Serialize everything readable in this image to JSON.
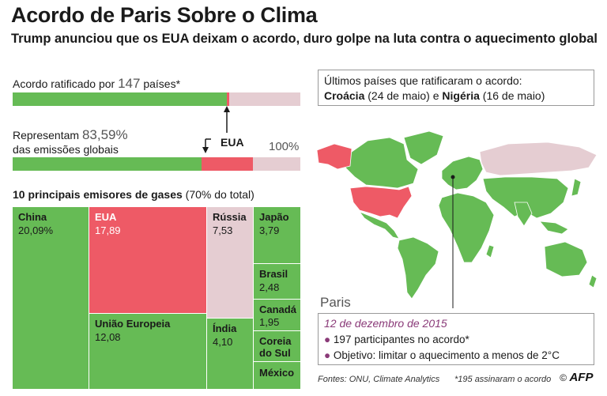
{
  "header": {
    "title": "Acordo de Paris Sobre o Clima",
    "subtitle": "Trump anunciou que os EUA deixam o acordo, duro golpe na luta contra o aquecimento global"
  },
  "ratified": {
    "label_prefix": "Acordo ratificado por",
    "count": "147",
    "label_suffix": "países*",
    "fraction": 0.7538
  },
  "emissions": {
    "label_prefix": "Representam",
    "value": "83,59%",
    "label_line2": "das emissões globais",
    "full_label": "100%",
    "fraction": 0.8359,
    "usa_fraction": 0.1789
  },
  "usa_marker": "EUA",
  "treemap": {
    "title": "10 principais emisores de gases",
    "title_note": "(70% do total)"
  },
  "chart_data": {
    "type": "treemap",
    "title": "10 principais emisores de gases",
    "items": [
      {
        "name": "China",
        "value": 20.09,
        "label": "20,09%",
        "color": "#66bb55"
      },
      {
        "name": "EUA",
        "value": 17.89,
        "label": "17,89",
        "color": "#ee5a66"
      },
      {
        "name": "Rússia",
        "value": 7.53,
        "label": "7,53",
        "color": "#e5cdd2"
      },
      {
        "name": "Japão",
        "value": 3.79,
        "label": "3,79",
        "color": "#66bb55"
      },
      {
        "name": "Brasil",
        "value": 2.48,
        "label": "2,48",
        "color": "#66bb55"
      },
      {
        "name": "Canadá",
        "value": 1.95,
        "label": "1,95",
        "color": "#66bb55"
      },
      {
        "name": "União Europeia",
        "value": 12.08,
        "label": "12,08",
        "color": "#66bb55"
      },
      {
        "name": "Índia",
        "value": 4.1,
        "label": "4,10",
        "color": "#66bb55"
      },
      {
        "name": "Coreia do Sul",
        "value": null,
        "label": "",
        "color": "#66bb55"
      },
      {
        "name": "México",
        "value": null,
        "label": "",
        "color": "#66bb55"
      }
    ]
  },
  "recent": {
    "heading": "Últimos países que ratificaram o acordo:",
    "country1": "Croácia",
    "date1": "(24 de maio)",
    "conj": "e",
    "country2": "Nigéria",
    "date2": "(16 de maio)"
  },
  "paris": {
    "city": "Paris",
    "date": "12 de dezembro de 2015",
    "bullet1": "197 participantes no acordo*",
    "bullet2": "Objetivo: limitar o aquecimento a menos de 2°C"
  },
  "footer": {
    "sources": "Fontes: ONU, Climate Analytics",
    "note": "*195 assinaram o acordo",
    "logo": "AFP"
  },
  "colors": {
    "green": "#66bb55",
    "red": "#ee5a66",
    "pink": "#e5cdd2",
    "date_purple": "#8a3a78"
  }
}
